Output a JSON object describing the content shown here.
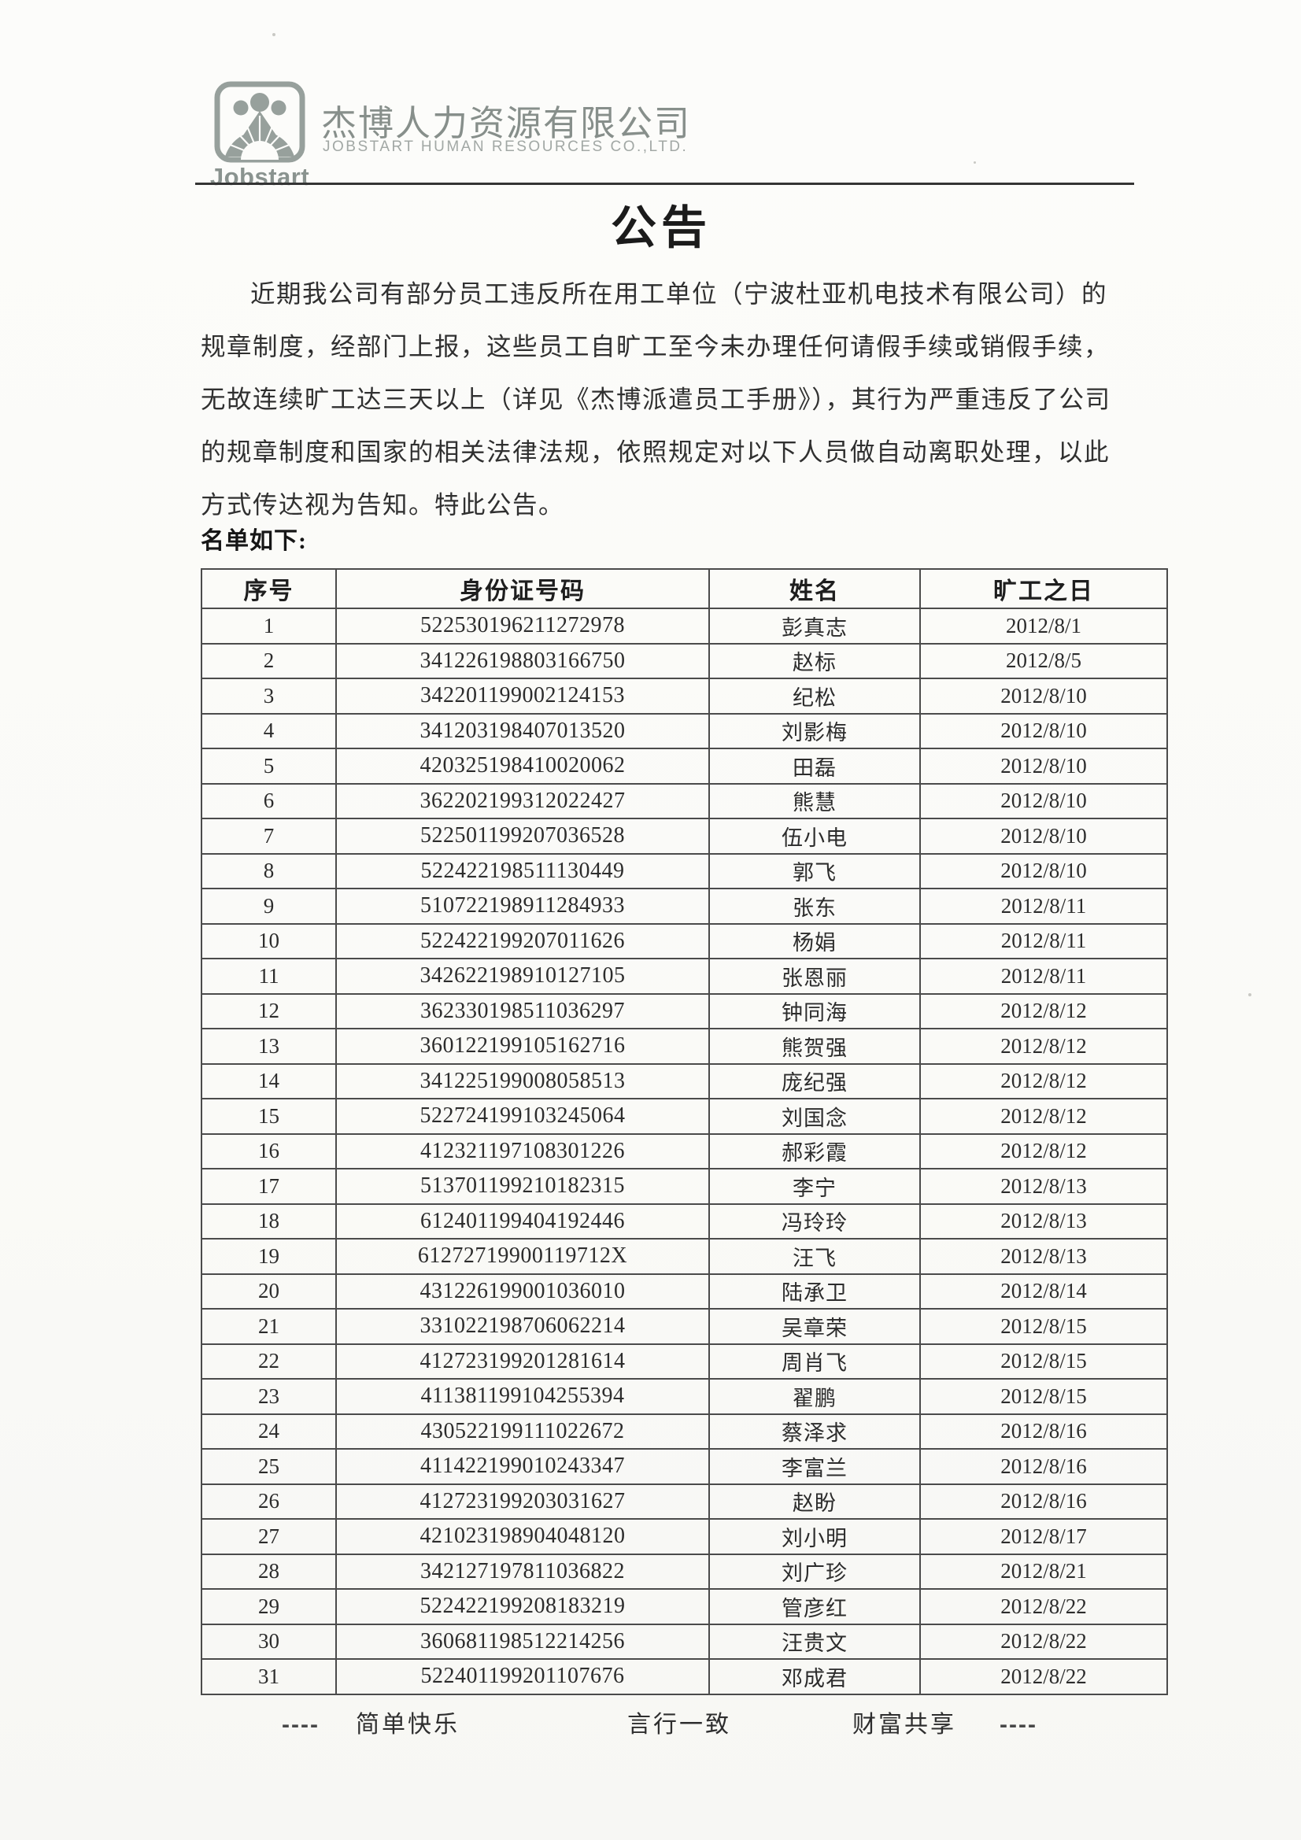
{
  "header": {
    "logo": {
      "brand": "Jobstart",
      "icon": "people-sunburst-logo"
    },
    "company_name_zh": "杰博人力资源有限公司",
    "company_name_en": "JOBSTART HUMAN RESOURCES CO.,LTD."
  },
  "title": "公告",
  "body": {
    "paragraph_lines": [
      "近期我公司有部分员工违反所在用工单位（宁波杜亚机电技术有限公司）的",
      "规章制度，经部门上报，这些员工自旷工至今未办理任何请假手续或销假手续，",
      "无故连续旷工达三天以上（详见《杰博派遣员工手册》），其行为严重违反了公司",
      "的规章制度和国家的相关法律法规，依照规定对以下人员做自动离职处理，以此",
      "方式传达视为告知。特此公告。"
    ],
    "list_label": "名单如下:"
  },
  "table": {
    "headers": [
      "序号",
      "身份证号码",
      "姓名",
      "旷工之日"
    ],
    "rows": [
      [
        "1",
        "522530196211272978",
        "彭真志",
        "2012/8/1"
      ],
      [
        "2",
        "341226198803166750",
        "赵标",
        "2012/8/5"
      ],
      [
        "3",
        "342201199002124153",
        "纪松",
        "2012/8/10"
      ],
      [
        "4",
        "341203198407013520",
        "刘影梅",
        "2012/8/10"
      ],
      [
        "5",
        "420325198410020062",
        "田磊",
        "2012/8/10"
      ],
      [
        "6",
        "362202199312022427",
        "熊慧",
        "2012/8/10"
      ],
      [
        "7",
        "522501199207036528",
        "伍小电",
        "2012/8/10"
      ],
      [
        "8",
        "522422198511130449",
        "郭飞",
        "2012/8/10"
      ],
      [
        "9",
        "510722198911284933",
        "张东",
        "2012/8/11"
      ],
      [
        "10",
        "522422199207011626",
        "杨娟",
        "2012/8/11"
      ],
      [
        "11",
        "342622198910127105",
        "张恩丽",
        "2012/8/11"
      ],
      [
        "12",
        "362330198511036297",
        "钟同海",
        "2012/8/12"
      ],
      [
        "13",
        "360122199105162716",
        "熊贺强",
        "2012/8/12"
      ],
      [
        "14",
        "341225199008058513",
        "庞纪强",
        "2012/8/12"
      ],
      [
        "15",
        "522724199103245064",
        "刘国念",
        "2012/8/12"
      ],
      [
        "16",
        "412321197108301226",
        "郝彩霞",
        "2012/8/12"
      ],
      [
        "17",
        "513701199210182315",
        "李宁",
        "2012/8/13"
      ],
      [
        "18",
        "612401199404192446",
        "冯玲玲",
        "2012/8/13"
      ],
      [
        "19",
        "61272719900119712X",
        "汪飞",
        "2012/8/13"
      ],
      [
        "20",
        "431226199001036010",
        "陆承卫",
        "2012/8/14"
      ],
      [
        "21",
        "331022198706062214",
        "吴章荣",
        "2012/8/15"
      ],
      [
        "22",
        "412723199201281614",
        "周肖飞",
        "2012/8/15"
      ],
      [
        "23",
        "411381199104255394",
        "翟鹏",
        "2012/8/15"
      ],
      [
        "24",
        "430522199111022672",
        "蔡泽求",
        "2012/8/16"
      ],
      [
        "25",
        "411422199010243347",
        "李富兰",
        "2012/8/16"
      ],
      [
        "26",
        "412723199203031627",
        "赵盼",
        "2012/8/16"
      ],
      [
        "27",
        "421023198904048120",
        "刘小明",
        "2012/8/17"
      ],
      [
        "28",
        "342127197811036822",
        "刘广珍",
        "2012/8/21"
      ],
      [
        "29",
        "522422199208183219",
        "管彦红",
        "2012/8/22"
      ],
      [
        "30",
        "360681198512214256",
        "汪贵文",
        "2012/8/22"
      ],
      [
        "31",
        "522401199201107676",
        "邓成君",
        "2012/8/22"
      ]
    ]
  },
  "footer": {
    "dash": "----",
    "mottos": [
      "简单快乐",
      "言行一致",
      "财富共享"
    ]
  },
  "colors": {
    "logo_gray": "#97a09c",
    "text_dark": "#2c2c2c",
    "table_border": "#4b4b4b"
  }
}
